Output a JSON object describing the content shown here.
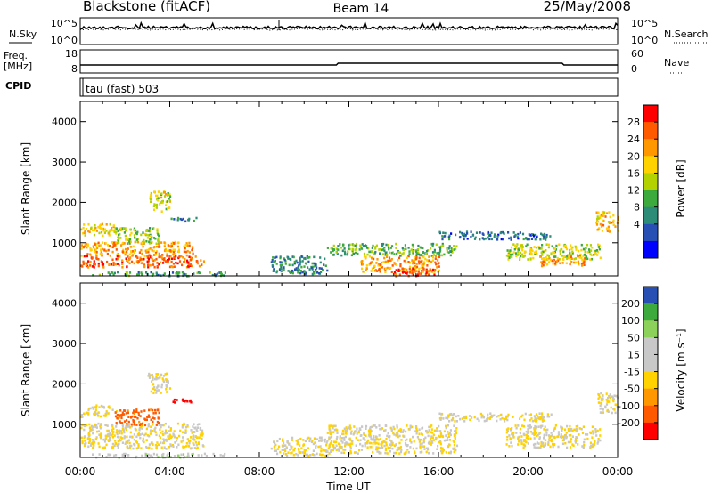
{
  "header": {
    "station": "Blackstone (fitACF)",
    "beam": "Beam 14",
    "date": "25/May/2008"
  },
  "noise_panel": {
    "left_label": "N.Sky",
    "right_label": "N.Search",
    "left_ticks": [
      "10^5",
      "10^0"
    ],
    "right_ticks": [
      "10^5",
      "10^0"
    ]
  },
  "freq_panel": {
    "left_label_line1": "Freq.",
    "left_label_line2": "[MHz]",
    "right_label": "Nave",
    "left_ticks": [
      "18",
      "8"
    ],
    "right_ticks": [
      "60",
      "0"
    ]
  },
  "cpid_panel": {
    "label": "CPID",
    "value": "tau (fast) 503"
  },
  "chart_data": [
    {
      "type": "heatmap",
      "name": "power",
      "ylabel": "Slant Range [km]",
      "ylim": [
        180,
        4500
      ],
      "yticks": [
        "1000",
        "2000",
        "3000",
        "4000"
      ],
      "colorbar": {
        "label": "Power [dB]",
        "ticks": [
          "28",
          "24",
          "20",
          "16",
          "12",
          "8",
          "4"
        ],
        "colors": [
          "#ff0000",
          "#ff5a00",
          "#ff9800",
          "#ffd200",
          "#b4d200",
          "#3caa3c",
          "#2d8c78",
          "#2850b4",
          "#0000ff"
        ]
      },
      "patches": [
        {
          "t0": 0.0,
          "t1": 1.6,
          "r0": 1200,
          "r1": 1500,
          "level": 18
        },
        {
          "t0": 0.0,
          "t1": 5.0,
          "r0": 700,
          "r1": 1050,
          "level": 22
        },
        {
          "t0": 0.0,
          "t1": 5.5,
          "r0": 420,
          "r1": 700,
          "level": 26
        },
        {
          "t0": 1.5,
          "t1": 3.5,
          "r0": 1000,
          "r1": 1400,
          "level": 12
        },
        {
          "t0": 3.0,
          "t1": 4.0,
          "r0": 1800,
          "r1": 2300,
          "level": 16
        },
        {
          "t0": 4.0,
          "t1": 5.2,
          "r0": 1550,
          "r1": 1650,
          "level": 6
        },
        {
          "t0": 0.5,
          "t1": 6.5,
          "r0": 200,
          "r1": 300,
          "level": 8
        },
        {
          "t0": 8.5,
          "t1": 11.0,
          "r0": 250,
          "r1": 700,
          "level": 6
        },
        {
          "t0": 11.0,
          "t1": 16.8,
          "r0": 700,
          "r1": 1000,
          "level": 10
        },
        {
          "t0": 12.5,
          "t1": 16.0,
          "r0": 300,
          "r1": 700,
          "level": 22
        },
        {
          "t0": 14.0,
          "t1": 16.0,
          "r0": 200,
          "r1": 400,
          "level": 28
        },
        {
          "t0": 16.0,
          "t1": 21.0,
          "r0": 1100,
          "r1": 1300,
          "level": 4
        },
        {
          "t0": 19.0,
          "t1": 23.2,
          "r0": 600,
          "r1": 1000,
          "level": 14
        },
        {
          "t0": 20.5,
          "t1": 22.5,
          "r0": 450,
          "r1": 700,
          "level": 22
        },
        {
          "t0": 23.0,
          "t1": 24.0,
          "r0": 1300,
          "r1": 1800,
          "level": 20
        }
      ]
    },
    {
      "type": "heatmap",
      "name": "velocity",
      "ylabel": "Slant Range [km]",
      "ylim": [
        180,
        4500
      ],
      "yticks": [
        "1000",
        "2000",
        "3000",
        "4000"
      ],
      "xlabel": "Time UT",
      "xticks": [
        "00:00",
        "04:00",
        "08:00",
        "12:00",
        "16:00",
        "20:00",
        "00:00"
      ],
      "colorbar": {
        "label": "Velocity [m s⁻¹]",
        "ticks": [
          "200",
          "100",
          "50",
          "15",
          "-15",
          "-50",
          "-100",
          "-200"
        ],
        "colors": [
          "#2850b4",
          "#3caa3c",
          "#8cd25a",
          "#c8c8c8",
          "#c8c8c8",
          "#ffd200",
          "#ff9800",
          "#ff5a00",
          "#ff0000"
        ]
      },
      "patches": [
        {
          "t0": 0.0,
          "t1": 5.5,
          "r0": 420,
          "r1": 1050,
          "v": 0
        },
        {
          "t0": 0.0,
          "t1": 1.6,
          "r0": 1200,
          "r1": 1500,
          "v": 0
        },
        {
          "t0": 1.5,
          "t1": 3.5,
          "r0": 1000,
          "r1": 1400,
          "v": -60
        },
        {
          "t0": 3.0,
          "t1": 4.0,
          "r0": 1800,
          "r1": 2300,
          "v": 0
        },
        {
          "t0": 4.0,
          "t1": 5.2,
          "r0": 1550,
          "r1": 1650,
          "v": -200
        },
        {
          "t0": 0.5,
          "t1": 6.5,
          "r0": 200,
          "r1": 300,
          "v": 40
        },
        {
          "t0": 8.5,
          "t1": 11.0,
          "r0": 250,
          "r1": 700,
          "v": 0
        },
        {
          "t0": 11.0,
          "t1": 16.8,
          "r0": 300,
          "r1": 1000,
          "v": 0
        },
        {
          "t0": 16.0,
          "t1": 21.0,
          "r0": 1100,
          "r1": 1300,
          "v": 0
        },
        {
          "t0": 19.0,
          "t1": 23.2,
          "r0": 450,
          "r1": 1000,
          "v": 0
        },
        {
          "t0": 23.0,
          "t1": 24.0,
          "r0": 1300,
          "r1": 1800,
          "v": 0
        }
      ]
    }
  ]
}
